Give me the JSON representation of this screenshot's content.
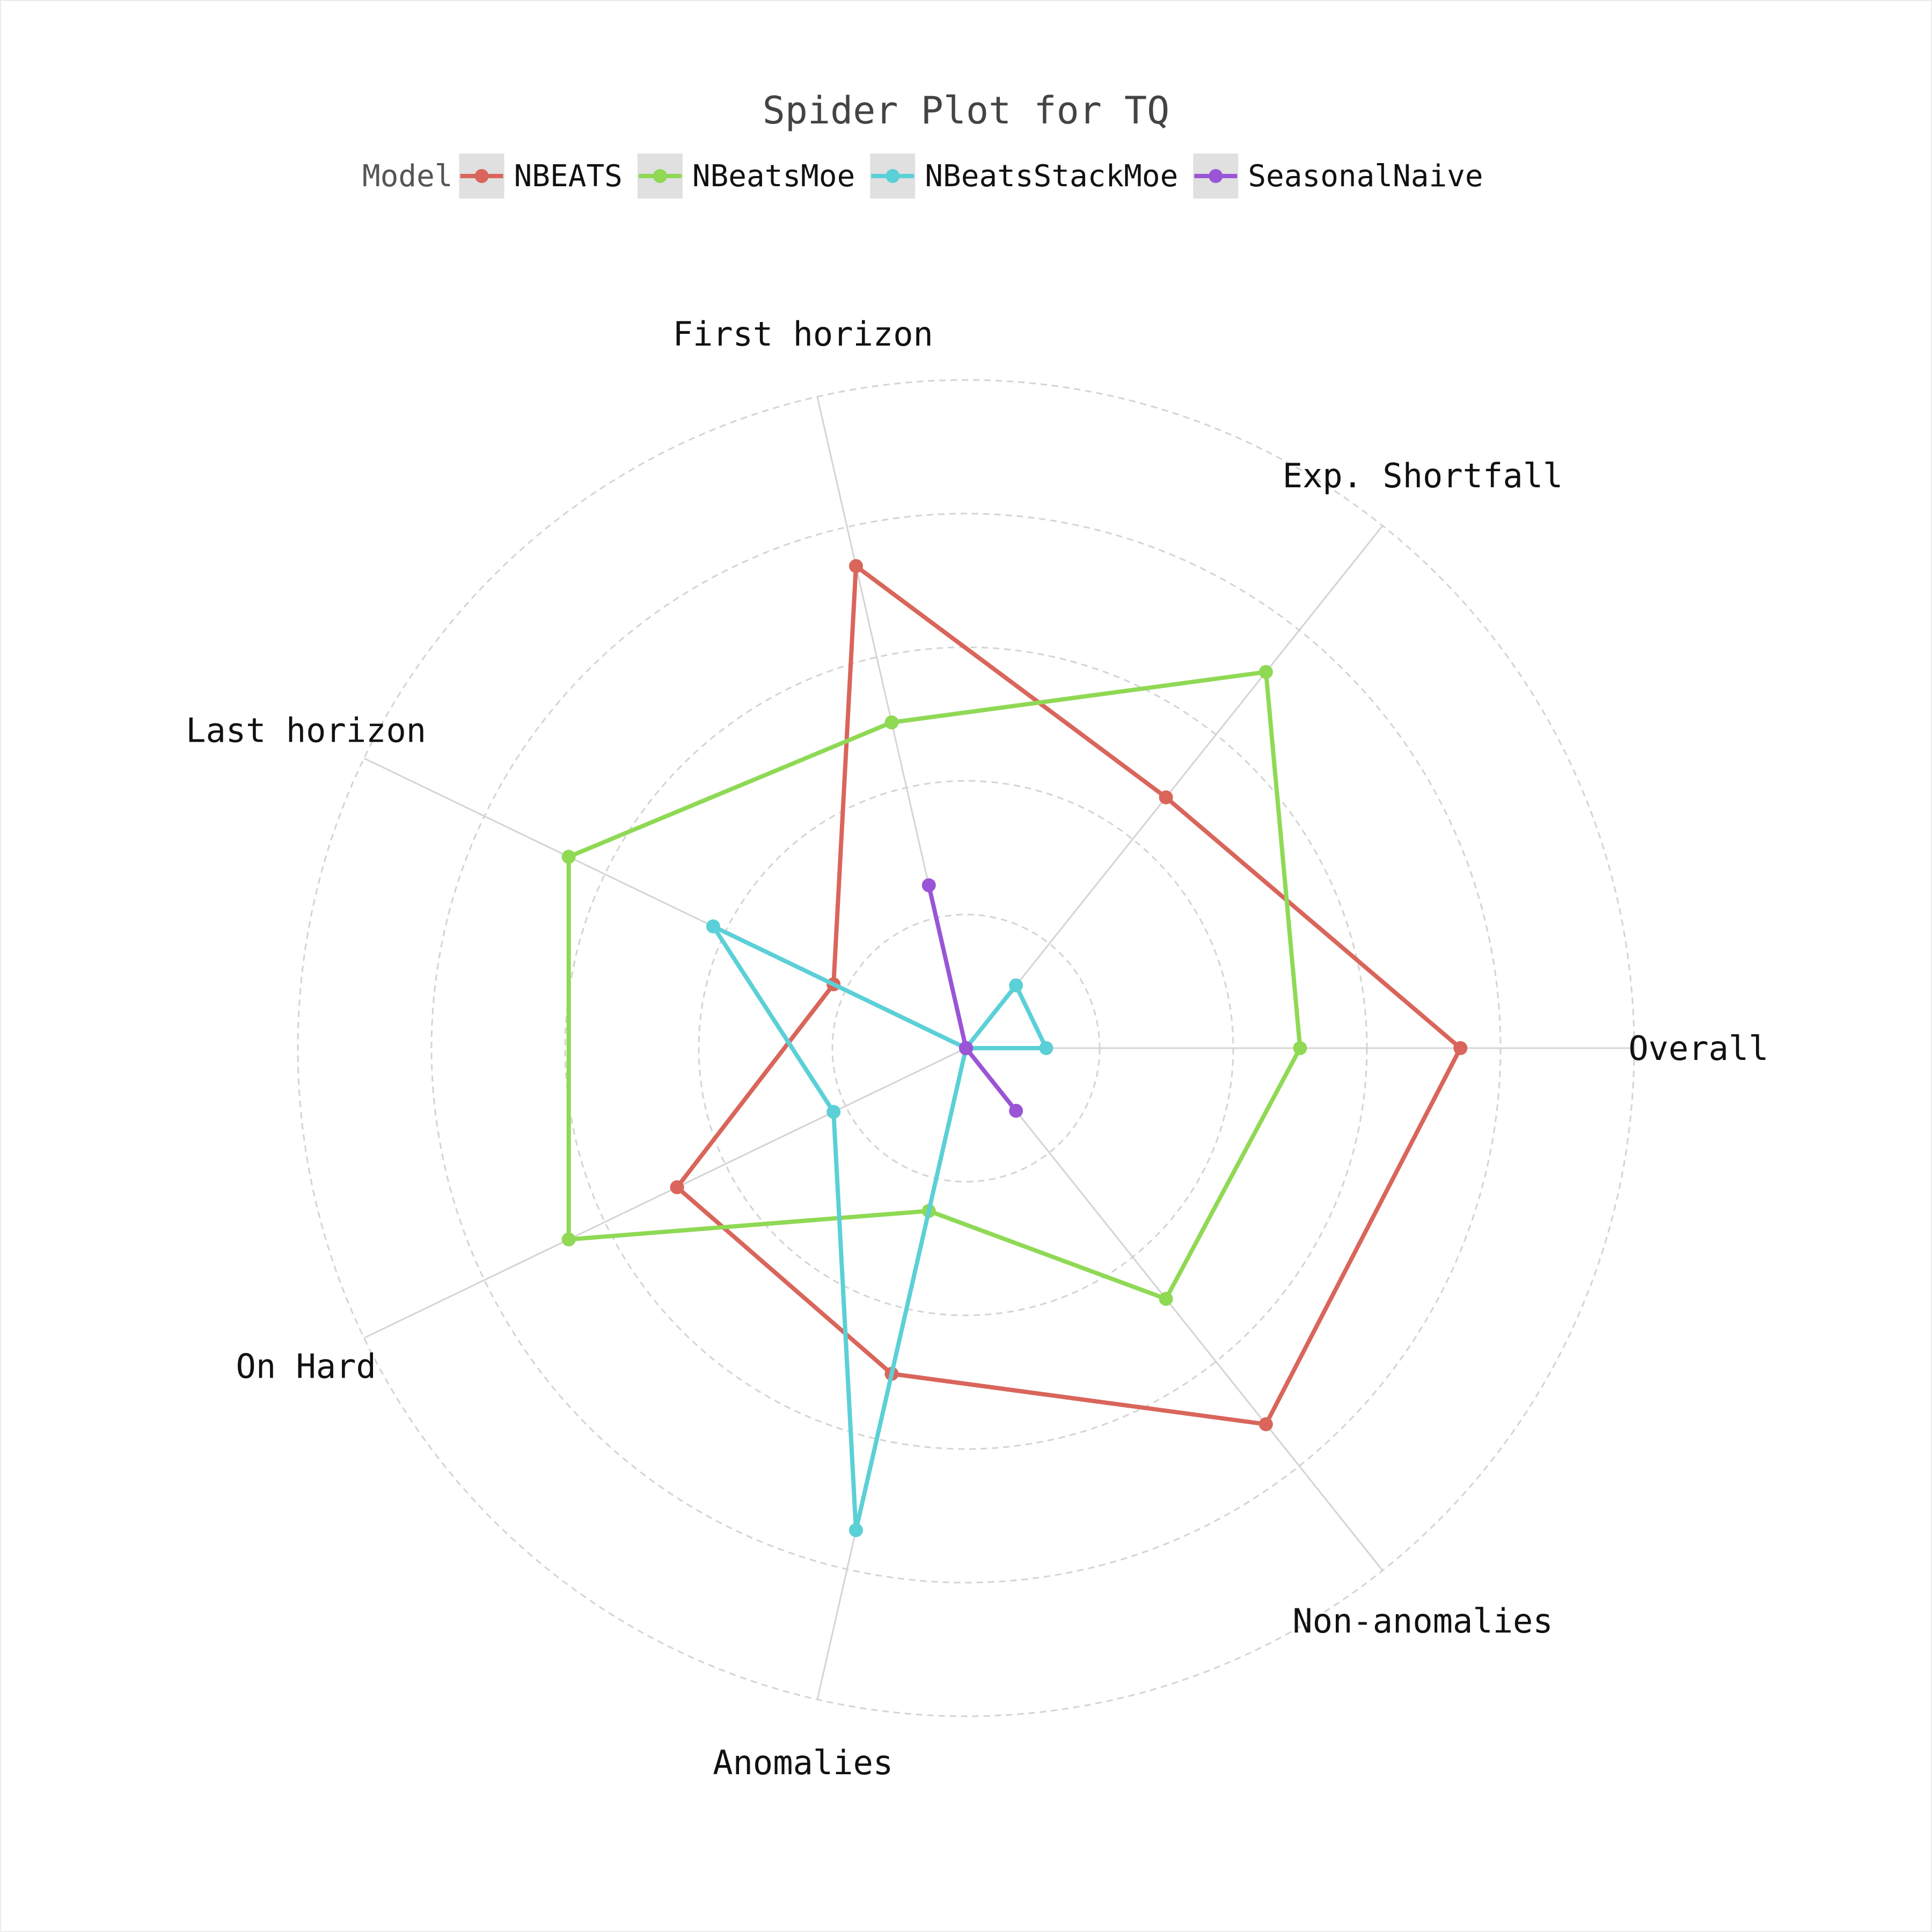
{
  "chart_data": {
    "type": "radar",
    "title": "Spider Plot for TQ",
    "legend_title": "Model",
    "legend_placement": "top",
    "axes": [
      "Overall",
      "Exp. Shortfall",
      "First horizon",
      "Last horizon",
      "On Hard",
      "Anomalies",
      "Non-anomalies"
    ],
    "rlim": [
      0,
      5
    ],
    "grid": true,
    "series": [
      {
        "name": "NBEATS",
        "color": "#d9655b",
        "values": [
          3.7,
          2.4,
          3.7,
          1.1,
          2.4,
          2.5,
          3.6
        ]
      },
      {
        "name": "NBeatsMoe",
        "color": "#8fd955",
        "values": [
          2.5,
          3.6,
          2.5,
          3.3,
          3.3,
          1.25,
          2.4
        ]
      },
      {
        "name": "NBeatsStackMoe",
        "color": "#5bd0d6",
        "values": [
          0.6,
          0.6,
          0.0,
          2.1,
          1.1,
          3.7,
          0.0
        ]
      },
      {
        "name": "SeasonalNaive",
        "color": "#9a55d6",
        "values": [
          0.0,
          0.0,
          1.25,
          0.0,
          0.0,
          0.0,
          0.6
        ]
      }
    ]
  }
}
